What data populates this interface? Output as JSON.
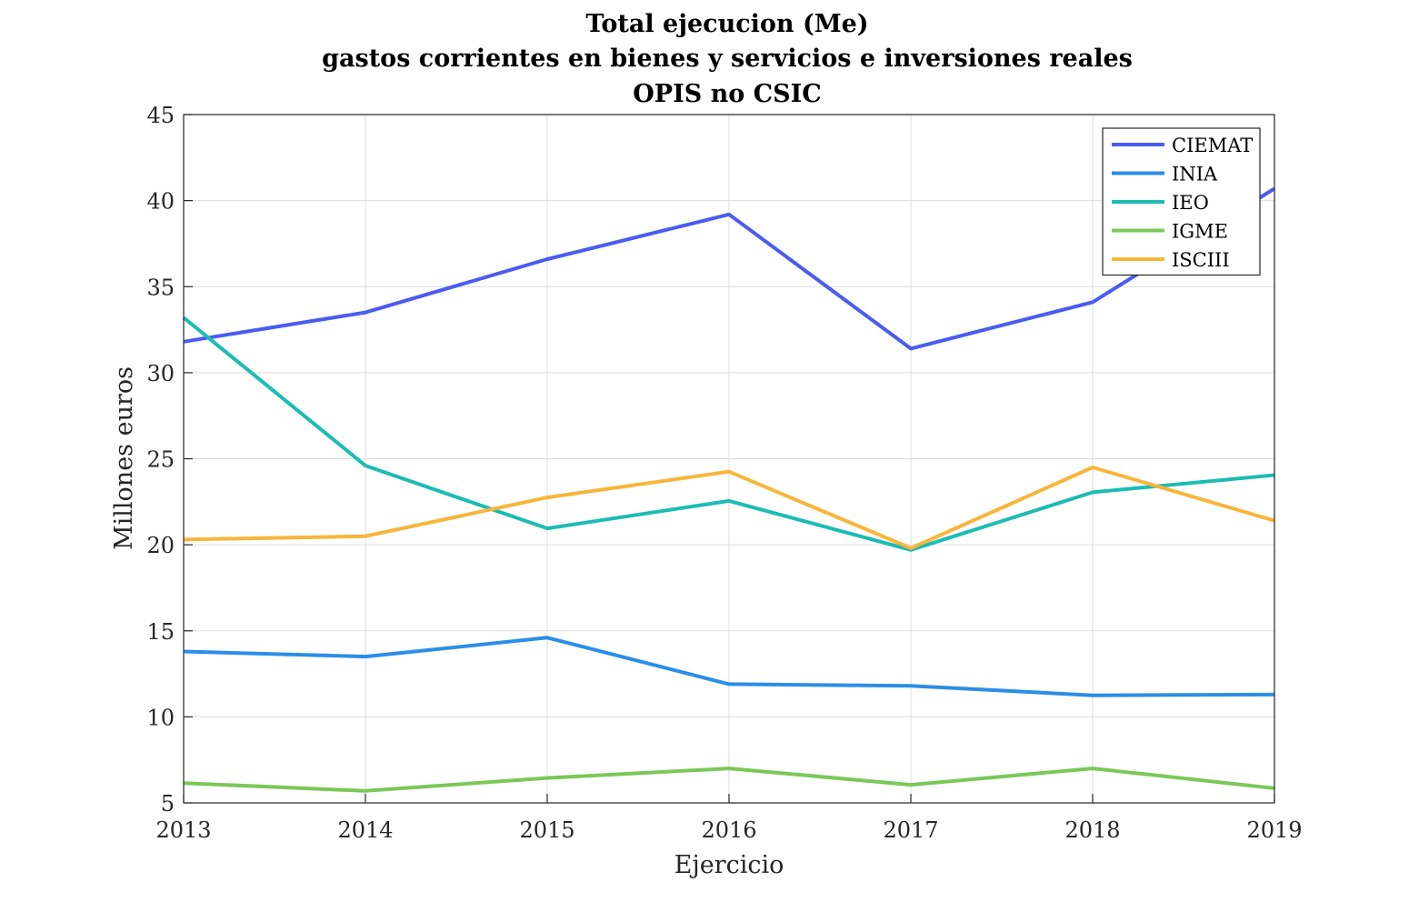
{
  "chart_data": {
    "type": "line",
    "title": [
      "Total ejecucion (Me)",
      "gastos corrientes en bienes y servicios e inversiones reales",
      "OPIS no CSIC"
    ],
    "xlabel": "Ejercicio",
    "ylabel": "Millones euros",
    "x": [
      2013,
      2014,
      2015,
      2016,
      2017,
      2018,
      2019
    ],
    "xlim": [
      2013,
      2019
    ],
    "ylim": [
      5,
      45
    ],
    "yticks": [
      5,
      10,
      15,
      20,
      25,
      30,
      35,
      40,
      45
    ],
    "grid": true,
    "legend_position": "top-right",
    "series": [
      {
        "name": "CIEMAT",
        "color": "#4a5cf0",
        "values": [
          31.8,
          33.5,
          36.6,
          39.2,
          31.4,
          34.1,
          40.7
        ]
      },
      {
        "name": "INIA",
        "color": "#2b8ee8",
        "values": [
          13.8,
          13.5,
          14.6,
          11.9,
          11.8,
          11.25,
          11.3
        ]
      },
      {
        "name": "IEO",
        "color": "#1bbcb4",
        "values": [
          33.2,
          24.6,
          20.95,
          22.55,
          19.7,
          23.05,
          24.05
        ]
      },
      {
        "name": "IGME",
        "color": "#7ac858",
        "values": [
          6.15,
          5.7,
          6.45,
          7.0,
          6.05,
          7.0,
          5.85
        ]
      },
      {
        "name": "ISCIII",
        "color": "#f8b53a",
        "values": [
          20.3,
          20.5,
          22.75,
          24.25,
          19.8,
          24.5,
          21.4
        ]
      }
    ]
  }
}
